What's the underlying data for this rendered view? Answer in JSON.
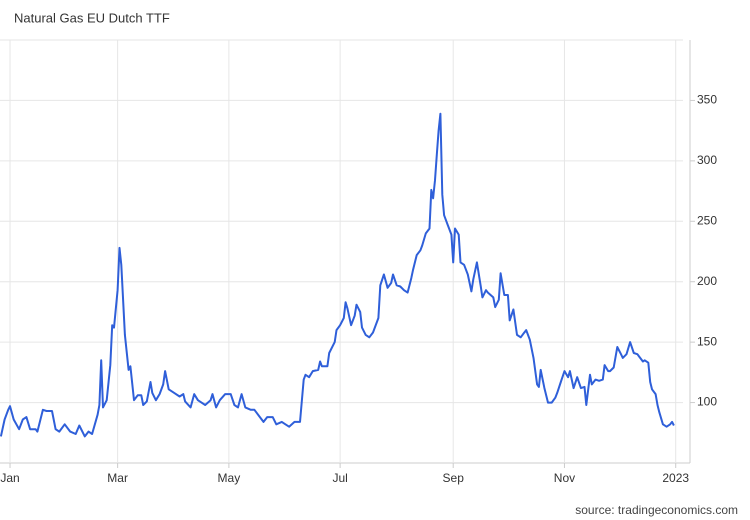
{
  "chart_data": {
    "type": "line",
    "title": "Natural Gas EU Dutch TTF",
    "source": "source: tradingeconomics.com",
    "xlim": [
      -5.5,
      369
    ],
    "ylim": [
      50,
      400
    ],
    "xticks": [
      {
        "value": 0,
        "label": "Jan"
      },
      {
        "value": 59,
        "label": "Mar"
      },
      {
        "value": 120,
        "label": "May"
      },
      {
        "value": 181,
        "label": "Jul"
      },
      {
        "value": 243,
        "label": "Sep"
      },
      {
        "value": 304,
        "label": "Nov"
      },
      {
        "value": 365,
        "label": "2023"
      }
    ],
    "yticks": [
      100,
      150,
      200,
      250,
      300,
      350
    ],
    "grid": true,
    "series": [
      {
        "color": "#2f5fd9",
        "x": [
          -5,
          -3,
          -1,
          0,
          2,
          5,
          7,
          9,
          11,
          14,
          15,
          18,
          20,
          23,
          25,
          27,
          30,
          33,
          36,
          38,
          41,
          43,
          45,
          48,
          49,
          50,
          51,
          53,
          55,
          56,
          57,
          59,
          60,
          61,
          63,
          65,
          66,
          68,
          70,
          72,
          73,
          75,
          77,
          78,
          80,
          82,
          84,
          85,
          87,
          90,
          93,
          95,
          96,
          99,
          101,
          103,
          105,
          107,
          110,
          111,
          113,
          115,
          118,
          121,
          123,
          125,
          127,
          129,
          132,
          134,
          137,
          139,
          141,
          144,
          146,
          149,
          151,
          153,
          156,
          159,
          161,
          162,
          164,
          166,
          169,
          170,
          171,
          174,
          175,
          178,
          179,
          181,
          183,
          184,
          185,
          187,
          189,
          190,
          192,
          193,
          195,
          197,
          199,
          202,
          203,
          205,
          207,
          209,
          210,
          212,
          214,
          216,
          218,
          220,
          221,
          223,
          225,
          226,
          228,
          230,
          231,
          232,
          233,
          234,
          235,
          236,
          237,
          238,
          240,
          242,
          243,
          244,
          246,
          247,
          249,
          251,
          253,
          254,
          256,
          258,
          259,
          261,
          262,
          265,
          266,
          268,
          269,
          271,
          273,
          274,
          276,
          278,
          280,
          282,
          283,
          285,
          287,
          289,
          290,
          291,
          293,
          295,
          297,
          299,
          300,
          302,
          304,
          306,
          307,
          309,
          311,
          313,
          315,
          316,
          318,
          319,
          321,
          323,
          325,
          326,
          328,
          329,
          331,
          333,
          335,
          336,
          338,
          340,
          342,
          344,
          345,
          347,
          348,
          350,
          351,
          352,
          354,
          355,
          356,
          358,
          360,
          362,
          363,
          364
        ],
        "values": [
          72,
          86,
          94,
          97,
          86,
          78,
          86,
          88,
          78,
          78,
          76,
          94,
          93,
          93,
          78,
          76,
          82,
          76,
          74,
          81,
          72,
          76,
          74,
          90,
          98,
          135,
          96,
          102,
          131,
          164,
          162,
          193,
          228,
          214,
          156,
          127,
          130,
          102,
          106,
          106,
          98,
          101,
          117,
          108,
          102,
          107,
          115,
          126,
          111,
          108,
          105,
          107,
          101,
          96,
          107,
          102,
          100,
          98,
          102,
          107,
          96,
          102,
          107,
          107,
          98,
          96,
          107,
          96,
          94,
          94,
          88,
          84,
          88,
          88,
          82,
          84,
          82,
          80,
          84,
          84,
          119,
          123,
          121,
          126,
          127,
          134,
          130,
          130,
          141,
          150,
          160,
          164,
          170,
          183,
          178,
          164,
          172,
          181,
          175,
          162,
          156,
          154,
          158,
          170,
          197,
          206,
          195,
          199,
          206,
          197,
          196,
          193,
          191,
          203,
          210,
          222,
          226,
          230,
          240,
          244,
          276,
          269,
          284,
          305,
          325,
          339,
          272,
          255,
          247,
          239,
          216,
          244,
          239,
          216,
          214,
          206,
          192,
          202,
          216,
          197,
          187,
          193,
          191,
          187,
          179,
          185,
          207,
          189,
          189,
          168,
          177,
          156,
          154,
          158,
          160,
          152,
          137,
          115,
          113,
          127,
          112,
          100,
          100,
          104,
          108,
          117,
          126,
          121,
          126,
          112,
          121,
          112,
          113,
          98,
          123,
          115,
          119,
          118,
          119,
          131,
          126,
          126,
          129,
          146,
          140,
          137,
          140,
          150,
          141,
          140,
          138,
          134,
          135,
          133,
          117,
          111,
          107,
          98,
          92,
          82,
          80,
          82,
          84,
          81
        ]
      }
    ]
  }
}
